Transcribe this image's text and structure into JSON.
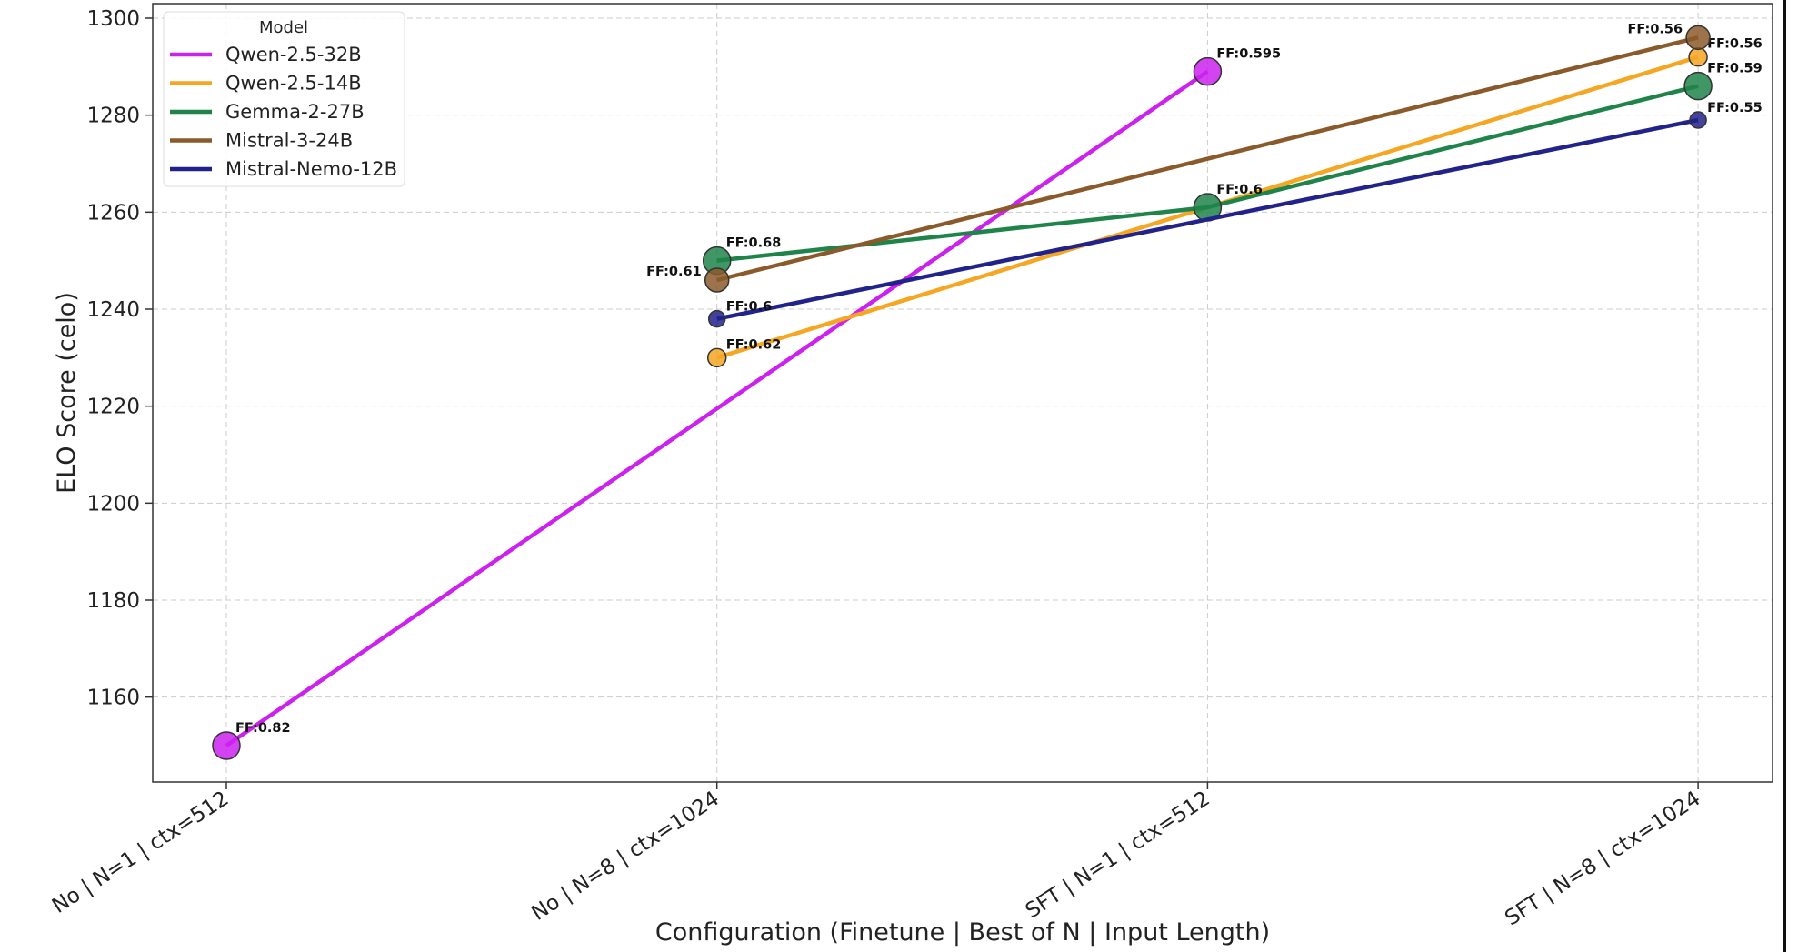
{
  "chart_data": {
    "type": "line",
    "title": "",
    "xlabel": "Configuration (Finetune | Best of N | Input Length)",
    "ylabel": "ELO Score (celo)",
    "categories": [
      "No | N=1 | ctx=512",
      "No | N=8 | ctx=1024",
      "SFT | N=1 | ctx=512",
      "SFT | N=8 | ctx=1024"
    ],
    "ylim": [
      1142.5,
      1303
    ],
    "yticks": [
      1160,
      1180,
      1200,
      1220,
      1240,
      1260,
      1280,
      1300
    ],
    "grid": true,
    "legend": {
      "title": "Model",
      "placement": "top-left"
    },
    "series": [
      {
        "name": "Qwen-2.5-32B",
        "color": "#cc22ee",
        "values": [
          1150,
          null,
          1289,
          null
        ],
        "labels": [
          "FF:0.82",
          null,
          "FF:0.595",
          null
        ],
        "label_side": "right"
      },
      {
        "name": "Qwen-2.5-14B",
        "color": "#f5a623",
        "values": [
          null,
          1230,
          null,
          1292
        ],
        "labels": [
          null,
          "FF:0.62",
          null,
          "FF:0.56"
        ],
        "label_side": "right"
      },
      {
        "name": "Gemma-2-27B",
        "color": "#1e8449",
        "values": [
          null,
          1250,
          1261,
          1286
        ],
        "labels": [
          null,
          "FF:0.68",
          "FF:0.6",
          "FF:0.59"
        ],
        "label_side": "right"
      },
      {
        "name": "Mistral-3-24B",
        "color": "#8b5a2b",
        "values": [
          null,
          1246,
          null,
          1296
        ],
        "labels": [
          null,
          "FF:0.61",
          null,
          "FF:0.56"
        ],
        "label_side": "left"
      },
      {
        "name": "Mistral-Nemo-12B",
        "color": "#22228b",
        "values": [
          null,
          1238,
          null,
          1279
        ],
        "labels": [
          null,
          "FF:0.6",
          null,
          "FF:0.55"
        ],
        "label_side": "right"
      }
    ]
  }
}
